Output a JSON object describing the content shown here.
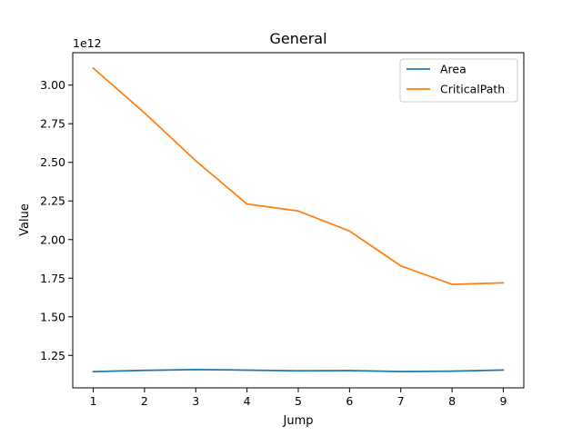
{
  "chart_data": {
    "type": "line",
    "title": "General",
    "xlabel": "Jump",
    "ylabel": "Value",
    "y_offset_label": "1e12",
    "x": [
      1,
      2,
      3,
      4,
      5,
      6,
      7,
      8,
      9
    ],
    "xticks": [
      "1",
      "2",
      "3",
      "4",
      "5",
      "6",
      "7",
      "8",
      "9"
    ],
    "yticks": [
      {
        "value": 1.25,
        "label": "1.25"
      },
      {
        "value": 1.5,
        "label": "1.50"
      },
      {
        "value": 1.75,
        "label": "1.75"
      },
      {
        "value": 2.0,
        "label": "2.00"
      },
      {
        "value": 2.25,
        "label": "2.25"
      },
      {
        "value": 2.5,
        "label": "2.50"
      },
      {
        "value": 2.75,
        "label": "2.75"
      },
      {
        "value": 3.0,
        "label": "3.00"
      }
    ],
    "xlim": [
      0.6,
      9.4
    ],
    "ylim": [
      1.04,
      3.21
    ],
    "y_units_scale": "1e12",
    "grid": false,
    "legend_position": "top-right",
    "series": [
      {
        "name": "Area",
        "color": "#1f77b4",
        "values": [
          1.145,
          1.153,
          1.158,
          1.155,
          1.15,
          1.152,
          1.146,
          1.148,
          1.155
        ]
      },
      {
        "name": "CriticalPath",
        "color": "#ff7f0e",
        "values": [
          3.11,
          2.82,
          2.51,
          2.23,
          2.185,
          2.055,
          1.83,
          1.71,
          1.72
        ]
      }
    ]
  }
}
